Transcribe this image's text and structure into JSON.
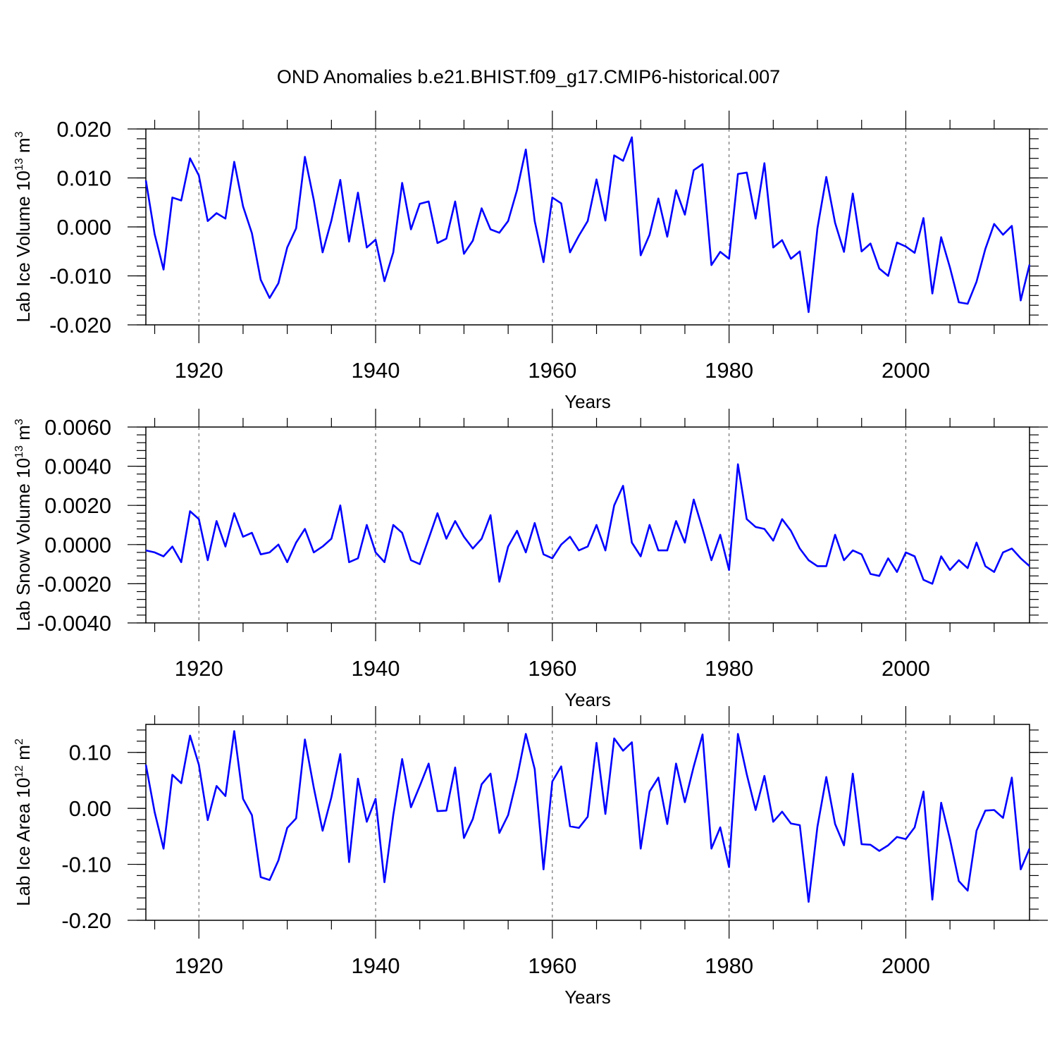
{
  "chart_data": {
    "title": "OND Anomalies b.e21.BHIST.f09_g17.CMIP6-historical.007",
    "type": "line",
    "line_color": "#0000ff",
    "start_year": 1914,
    "end_year": 2014,
    "xlim": [
      1914,
      2014
    ],
    "xticks": [
      1920,
      1940,
      1960,
      1980,
      2000
    ],
    "xlabel": "Years",
    "panels": [
      {
        "ylabel": "Lab Ice Volume 10",
        "ylabel_exp": "13",
        "ylabel_unit": " m",
        "ylabel_unit_exp": "3",
        "ylim": [
          -0.02,
          0.02
        ],
        "yticks": [
          0.02,
          0.01,
          0.0,
          -0.01,
          -0.02
        ],
        "ytick_labels": [
          "0.020",
          "0.010",
          "0.000",
          "-0.010",
          "-0.020"
        ],
        "values": [
          0.0095,
          -0.0015,
          -0.0087,
          0.006,
          0.0054,
          0.014,
          0.0105,
          0.0012,
          0.0028,
          0.0017,
          0.0133,
          0.0042,
          -0.0013,
          -0.0108,
          -0.0145,
          -0.0115,
          -0.0042,
          -0.0003,
          0.0143,
          0.0055,
          -0.0052,
          0.0013,
          0.0096,
          -0.003,
          0.007,
          -0.0042,
          -0.0026,
          -0.0111,
          -0.0052,
          0.009,
          -0.0005,
          0.0047,
          0.0052,
          -0.0033,
          -0.0024,
          0.0052,
          -0.0055,
          -0.0028,
          0.0038,
          -0.0005,
          -0.0012,
          0.0012,
          0.0075,
          0.0158,
          0.0012,
          -0.0072,
          0.006,
          0.0048,
          -0.0052,
          -0.0018,
          0.0012,
          0.0097,
          0.0013,
          0.0146,
          0.0135,
          0.0183,
          -0.0058,
          -0.0016,
          0.0058,
          -0.002,
          0.0075,
          0.0025,
          0.0116,
          0.0128,
          -0.0078,
          -0.0051,
          -0.0065,
          0.0108,
          0.0111,
          0.0017,
          0.013,
          -0.0042,
          -0.0027,
          -0.0065,
          -0.005,
          -0.0174,
          -0.0003,
          0.0102,
          0.0008,
          -0.0051,
          0.0068,
          -0.005,
          -0.0034,
          -0.0085,
          -0.01,
          -0.0032,
          -0.004,
          -0.0053,
          0.0018,
          -0.0136,
          -0.0021,
          -0.0083,
          -0.0154,
          -0.0157,
          -0.0112,
          -0.0045,
          0.0006,
          -0.0016,
          0.0002,
          -0.015,
          -0.0077
        ]
      },
      {
        "ylabel": "Lab Snow Volume 10",
        "ylabel_exp": "13",
        "ylabel_unit": " m",
        "ylabel_unit_exp": "3",
        "ylim": [
          -0.004,
          0.006
        ],
        "yticks": [
          0.006,
          0.004,
          0.002,
          0.0,
          -0.002,
          -0.004
        ],
        "ytick_labels": [
          "0.0060",
          "0.0040",
          "0.0020",
          "0.0000",
          "-0.0020",
          "-0.0040"
        ],
        "values": [
          -0.0003,
          -0.0004,
          -0.0006,
          -0.0001,
          -0.0009,
          0.0017,
          0.0013,
          -0.0008,
          0.0012,
          -0.0001,
          0.0016,
          0.0004,
          0.0006,
          -0.0005,
          -0.0004,
          0.0,
          -0.0009,
          0.0001,
          0.0008,
          -0.0004,
          -0.0001,
          0.0003,
          0.002,
          -0.0009,
          -0.0007,
          0.001,
          -0.0004,
          -0.0009,
          0.001,
          0.0006,
          -0.0008,
          -0.001,
          0.0003,
          0.0016,
          0.0003,
          0.0012,
          0.0004,
          -0.0002,
          0.0003,
          0.0015,
          -0.0019,
          -0.0001,
          0.0007,
          -0.0004,
          0.0011,
          -0.0005,
          -0.0007,
          0.0,
          0.0004,
          -0.0003,
          -0.0001,
          0.001,
          -0.0003,
          0.002,
          0.003,
          0.0001,
          -0.0006,
          0.001,
          -0.0003,
          -0.0003,
          0.0012,
          0.0001,
          0.0023,
          0.0008,
          -0.0008,
          0.0005,
          -0.0013,
          0.0041,
          0.0013,
          0.0009,
          0.0008,
          0.0002,
          0.0013,
          0.0007,
          -0.0002,
          -0.0008,
          -0.0011,
          -0.0011,
          0.0005,
          -0.0008,
          -0.0003,
          -0.0005,
          -0.0015,
          -0.0016,
          -0.0007,
          -0.0014,
          -0.0004,
          -0.0006,
          -0.0018,
          -0.002,
          -0.0006,
          -0.0013,
          -0.0008,
          -0.0012,
          0.0001,
          -0.0011,
          -0.0014,
          -0.0004,
          -0.0002,
          -0.0007,
          -0.0011
        ]
      },
      {
        "ylabel": "Lab Ice Area 10",
        "ylabel_exp": "12",
        "ylabel_unit": " m",
        "ylabel_unit_exp": "2",
        "ylim": [
          -0.2,
          0.15
        ],
        "yticks": [
          0.1,
          0.0,
          -0.1,
          -0.2
        ],
        "ytick_labels": [
          "0.10",
          "0.00",
          "-0.10",
          "-0.20"
        ],
        "values": [
          0.078,
          -0.007,
          -0.072,
          0.06,
          0.045,
          0.13,
          0.078,
          -0.021,
          0.04,
          0.022,
          0.138,
          0.017,
          -0.012,
          -0.123,
          -0.128,
          -0.093,
          -0.035,
          -0.018,
          0.123,
          0.037,
          -0.04,
          0.02,
          0.097,
          -0.096,
          0.053,
          -0.024,
          0.017,
          -0.132,
          -0.012,
          0.088,
          0.002,
          0.04,
          0.08,
          -0.005,
          -0.004,
          0.073,
          -0.053,
          -0.019,
          0.043,
          0.062,
          -0.044,
          -0.012,
          0.054,
          0.133,
          0.07,
          -0.109,
          0.048,
          0.075,
          -0.032,
          -0.035,
          -0.015,
          0.117,
          -0.01,
          0.125,
          0.103,
          0.118,
          -0.072,
          0.03,
          0.055,
          -0.028,
          0.08,
          0.011,
          0.075,
          0.132,
          -0.072,
          -0.034,
          -0.105,
          0.133,
          0.061,
          -0.003,
          0.058,
          -0.024,
          -0.006,
          -0.027,
          -0.03,
          -0.167,
          -0.033,
          0.056,
          -0.028,
          -0.066,
          0.062,
          -0.064,
          -0.065,
          -0.076,
          -0.066,
          -0.051,
          -0.055,
          -0.034,
          0.03,
          -0.163,
          0.01,
          -0.055,
          -0.13,
          -0.147,
          -0.04,
          -0.004,
          -0.003,
          -0.017,
          0.055,
          -0.109,
          -0.072
        ]
      }
    ]
  }
}
